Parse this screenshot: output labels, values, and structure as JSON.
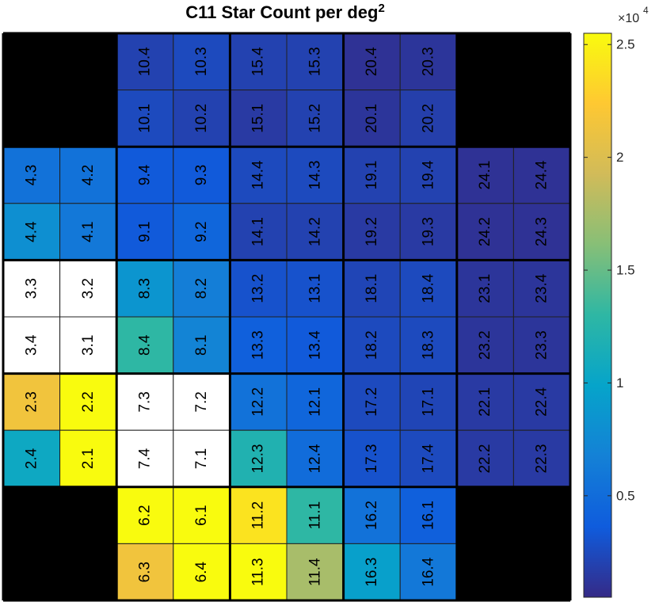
{
  "chart_data": {
    "type": "heatmap",
    "title": "C11 Star Count per deg",
    "title_superscript": "2",
    "colorbar": {
      "colormap": "parula",
      "multiplier_label": "×10",
      "multiplier_exponent": "4",
      "range": [
        0.05,
        2.55
      ],
      "ticks": [
        0.5,
        1,
        1.5,
        2,
        2.5
      ],
      "tick_labels": [
        "0.5",
        "1",
        "1.5",
        "2",
        "2.5"
      ],
      "overflow_color": "#ffffff",
      "missing_color": "#000000",
      "stops": [
        "#352a87",
        "#0f5cdd",
        "#1481d6",
        "#06a4ca",
        "#2eb7a4",
        "#87bf77",
        "#d1bb59",
        "#fec832",
        "#f9fb0e"
      ]
    },
    "rows": [
      [
        null,
        null,
        {
          "label": "10.4",
          "value": 0.2
        },
        {
          "label": "10.3",
          "value": 0.25
        },
        {
          "label": "15.4",
          "value": 0.2
        },
        {
          "label": "15.3",
          "value": 0.2
        },
        {
          "label": "20.4",
          "value": 0.1
        },
        {
          "label": "20.3",
          "value": 0.12
        },
        null,
        null
      ],
      [
        null,
        null,
        {
          "label": "10.1",
          "value": 0.25
        },
        {
          "label": "10.2",
          "value": 0.2
        },
        {
          "label": "15.1",
          "value": 0.15
        },
        {
          "label": "15.2",
          "value": 0.2
        },
        {
          "label": "20.1",
          "value": 0.12
        },
        {
          "label": "20.2",
          "value": 0.18
        },
        null,
        null
      ],
      [
        {
          "label": "4.3",
          "value": 0.55
        },
        {
          "label": "4.2",
          "value": 0.55
        },
        {
          "label": "9.4",
          "value": 0.35
        },
        {
          "label": "9.3",
          "value": 0.35
        },
        {
          "label": "14.4",
          "value": 0.25
        },
        {
          "label": "14.3",
          "value": 0.25
        },
        {
          "label": "19.1",
          "value": 0.2
        },
        {
          "label": "19.4",
          "value": 0.2
        },
        {
          "label": "24.1",
          "value": 0.1
        },
        {
          "label": "24.4",
          "value": 0.1
        }
      ],
      [
        {
          "label": "4.4",
          "value": 0.8
        },
        {
          "label": "4.1",
          "value": 0.6
        },
        {
          "label": "9.1",
          "value": 0.35
        },
        {
          "label": "9.2",
          "value": 0.45
        },
        {
          "label": "14.1",
          "value": 0.2
        },
        {
          "label": "14.2",
          "value": 0.2
        },
        {
          "label": "19.2",
          "value": 0.15
        },
        {
          "label": "19.3",
          "value": 0.15
        },
        {
          "label": "24.2",
          "value": 0.1
        },
        {
          "label": "24.3",
          "value": 0.1
        }
      ],
      [
        {
          "label": "3.3",
          "value": 3.0
        },
        {
          "label": "3.2",
          "value": 3.0
        },
        {
          "label": "8.3",
          "value": 0.85
        },
        {
          "label": "8.2",
          "value": 0.65
        },
        {
          "label": "13.2",
          "value": 0.3
        },
        {
          "label": "13.1",
          "value": 0.3
        },
        {
          "label": "18.1",
          "value": 0.22
        },
        {
          "label": "18.4",
          "value": 0.25
        },
        {
          "label": "23.1",
          "value": 0.12
        },
        {
          "label": "23.4",
          "value": 0.12
        }
      ],
      [
        {
          "label": "3.4",
          "value": 3.0
        },
        {
          "label": "3.1",
          "value": 3.0
        },
        {
          "label": "8.4",
          "value": 1.3
        },
        {
          "label": "8.1",
          "value": 0.7
        },
        {
          "label": "13.3",
          "value": 0.4
        },
        {
          "label": "13.4",
          "value": 0.35
        },
        {
          "label": "18.2",
          "value": 0.25
        },
        {
          "label": "18.3",
          "value": 0.25
        },
        {
          "label": "23.2",
          "value": 0.12
        },
        {
          "label": "23.3",
          "value": 0.12
        }
      ],
      [
        {
          "label": "2.3",
          "value": 2.15
        },
        {
          "label": "2.2",
          "value": 2.55
        },
        {
          "label": "7.3",
          "value": 3.0
        },
        {
          "label": "7.2",
          "value": 3.0
        },
        {
          "label": "12.2",
          "value": 0.55
        },
        {
          "label": "12.1",
          "value": 0.45
        },
        {
          "label": "17.2",
          "value": 0.25
        },
        {
          "label": "17.1",
          "value": 0.22
        },
        {
          "label": "22.1",
          "value": 0.15
        },
        {
          "label": "22.4",
          "value": 0.15
        }
      ],
      [
        {
          "label": "2.4",
          "value": 1.05
        },
        {
          "label": "2.1",
          "value": 2.55
        },
        {
          "label": "7.4",
          "value": 3.0
        },
        {
          "label": "7.1",
          "value": 3.0
        },
        {
          "label": "12.3",
          "value": 1.2
        },
        {
          "label": "12.4",
          "value": 0.5
        },
        {
          "label": "17.3",
          "value": 0.3
        },
        {
          "label": "17.4",
          "value": 0.25
        },
        {
          "label": "22.2",
          "value": 0.15
        },
        {
          "label": "22.3",
          "value": 0.15
        }
      ],
      [
        null,
        null,
        {
          "label": "6.2",
          "value": 2.55
        },
        {
          "label": "6.1",
          "value": 2.55
        },
        {
          "label": "11.2",
          "value": 2.4
        },
        {
          "label": "11.1",
          "value": 1.3
        },
        {
          "label": "16.2",
          "value": 0.55
        },
        {
          "label": "16.1",
          "value": 0.4
        },
        null,
        null
      ],
      [
        null,
        null,
        {
          "label": "6.3",
          "value": 2.15
        },
        {
          "label": "6.4",
          "value": 2.55
        },
        {
          "label": "11.3",
          "value": 2.55
        },
        {
          "label": "11.4",
          "value": 1.75
        },
        {
          "label": "16.3",
          "value": 0.95
        },
        {
          "label": "16.4",
          "value": 0.6
        },
        null,
        null
      ]
    ]
  }
}
